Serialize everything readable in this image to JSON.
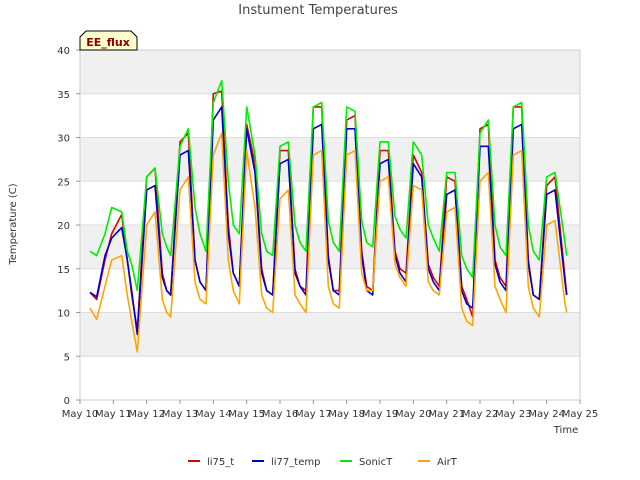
{
  "chart_data": {
    "type": "line",
    "title": "Instument Temperatures",
    "xlabel": "Time",
    "ylabel": "Temperature (C)",
    "badge": "EE_flux",
    "ylim": [
      0,
      40
    ],
    "yticks": [
      0,
      5,
      10,
      15,
      20,
      25,
      30,
      35,
      40
    ],
    "xlim": [
      10,
      25
    ],
    "xticks": [
      {
        "value": 10,
        "label": "May 10"
      },
      {
        "value": 11,
        "label": "May 11"
      },
      {
        "value": 12,
        "label": "May 12"
      },
      {
        "value": 13,
        "label": "May 13"
      },
      {
        "value": 14,
        "label": "May 14"
      },
      {
        "value": 15,
        "label": "May 15"
      },
      {
        "value": 16,
        "label": "May 16"
      },
      {
        "value": 17,
        "label": "May 17"
      },
      {
        "value": 18,
        "label": "May 18"
      },
      {
        "value": 19,
        "label": "May 19"
      },
      {
        "value": 20,
        "label": "May 20"
      },
      {
        "value": 21,
        "label": "May 21"
      },
      {
        "value": 22,
        "label": "May 22"
      },
      {
        "value": 23,
        "label": "May 23"
      },
      {
        "value": 24,
        "label": "May 24"
      },
      {
        "value": 25,
        "label": "May 25"
      }
    ],
    "grid": true,
    "legend_position": "bottom",
    "series": [
      {
        "name": "li75_t",
        "color": "#dd0000",
        "x": [
          10.3,
          10.5,
          10.75,
          10.95,
          11.25,
          11.42,
          11.55,
          11.72,
          12.0,
          12.25,
          12.47,
          12.6,
          12.72,
          13.0,
          13.25,
          13.45,
          13.6,
          13.78,
          14.0,
          14.25,
          14.45,
          14.6,
          14.78,
          15.0,
          15.25,
          15.45,
          15.6,
          15.78,
          16.0,
          16.25,
          16.45,
          16.6,
          16.78,
          17.0,
          17.25,
          17.45,
          17.6,
          17.78,
          18.0,
          18.25,
          18.45,
          18.6,
          18.78,
          19.0,
          19.25,
          19.45,
          19.6,
          19.78,
          20.0,
          20.25,
          20.45,
          20.6,
          20.78,
          21.0,
          21.25,
          21.45,
          21.6,
          21.78,
          22.0,
          22.25,
          22.45,
          22.6,
          22.78,
          23.0,
          23.25,
          23.45,
          23.6,
          23.78,
          24.0,
          24.25,
          24.55,
          24.6
        ],
        "y": [
          12.3,
          11.5,
          16.0,
          19.0,
          21.2,
          16.0,
          12.0,
          8.0,
          25.5,
          26.5,
          14.5,
          12.5,
          12.0,
          29.5,
          30.5,
          16.0,
          13.5,
          12.5,
          35.0,
          35.3,
          20.0,
          14.5,
          13.0,
          31.5,
          27.0,
          15.0,
          12.5,
          12.0,
          28.5,
          28.5,
          15.0,
          13.0,
          12.5,
          33.5,
          33.5,
          16.5,
          12.5,
          12.5,
          32.0,
          32.5,
          17.0,
          13.0,
          12.5,
          28.5,
          28.5,
          17.0,
          15.0,
          14.5,
          28.0,
          26.0,
          15.5,
          14.0,
          13.0,
          25.5,
          25.0,
          13.0,
          11.5,
          9.5,
          31.0,
          31.5,
          16.0,
          14.0,
          13.0,
          33.5,
          33.5,
          16.0,
          12.0,
          11.5,
          24.5,
          25.5,
          14.0,
          12.0
        ]
      },
      {
        "name": "li77_temp",
        "color": "#0000cc",
        "x": [
          10.3,
          10.5,
          10.75,
          10.95,
          11.25,
          11.42,
          11.55,
          11.72,
          12.0,
          12.25,
          12.47,
          12.6,
          12.72,
          13.0,
          13.25,
          13.45,
          13.6,
          13.78,
          14.0,
          14.25,
          14.45,
          14.6,
          14.78,
          15.0,
          15.25,
          15.45,
          15.6,
          15.78,
          16.0,
          16.25,
          16.45,
          16.6,
          16.78,
          17.0,
          17.25,
          17.45,
          17.6,
          17.78,
          18.0,
          18.25,
          18.45,
          18.6,
          18.78,
          19.0,
          19.25,
          19.45,
          19.6,
          19.78,
          20.0,
          20.25,
          20.45,
          20.6,
          20.78,
          21.0,
          21.25,
          21.45,
          21.6,
          21.78,
          22.0,
          22.25,
          22.45,
          22.6,
          22.78,
          23.0,
          23.25,
          23.45,
          23.6,
          23.78,
          24.0,
          24.25,
          24.55,
          24.6
        ],
        "y": [
          12.3,
          11.8,
          16.5,
          18.5,
          19.7,
          16.0,
          12.5,
          7.5,
          24.0,
          24.5,
          14.0,
          12.5,
          12.0,
          28.0,
          28.5,
          16.0,
          13.5,
          12.5,
          32.0,
          33.5,
          19.0,
          14.5,
          13.0,
          31.0,
          26.0,
          14.5,
          12.5,
          12.0,
          27.0,
          27.5,
          14.5,
          13.0,
          12.0,
          31.0,
          31.5,
          16.0,
          12.5,
          12.0,
          31.0,
          31.0,
          16.5,
          12.5,
          12.0,
          27.0,
          27.5,
          16.5,
          14.5,
          13.5,
          27.0,
          25.5,
          15.0,
          13.5,
          12.5,
          23.5,
          24.0,
          12.5,
          11.0,
          10.5,
          29.0,
          29.0,
          15.5,
          13.5,
          12.5,
          31.0,
          31.5,
          15.5,
          12.0,
          11.5,
          23.5,
          24.0,
          13.5,
          12.0
        ]
      },
      {
        "name": "SonicT",
        "color": "#00ee00",
        "x": [
          10.3,
          10.5,
          10.75,
          10.95,
          11.25,
          11.42,
          11.55,
          11.72,
          12.0,
          12.25,
          12.47,
          12.6,
          12.72,
          13.0,
          13.25,
          13.45,
          13.6,
          13.78,
          14.0,
          14.25,
          14.45,
          14.6,
          14.78,
          15.0,
          15.25,
          15.45,
          15.6,
          15.78,
          16.0,
          16.25,
          16.45,
          16.6,
          16.78,
          17.0,
          17.25,
          17.45,
          17.6,
          17.78,
          18.0,
          18.25,
          18.45,
          18.6,
          18.78,
          19.0,
          19.25,
          19.45,
          19.6,
          19.78,
          20.0,
          20.25,
          20.45,
          20.6,
          20.78,
          21.0,
          21.25,
          21.45,
          21.6,
          21.78,
          22.0,
          22.25,
          22.45,
          22.6,
          22.78,
          23.0,
          23.25,
          23.45,
          23.6,
          23.78,
          24.0,
          24.25,
          24.55,
          24.6
        ],
        "y": [
          17.0,
          16.5,
          19.0,
          22.0,
          21.5,
          17.0,
          15.5,
          12.5,
          25.5,
          26.5,
          19.0,
          17.5,
          16.5,
          29.0,
          31.0,
          22.0,
          19.0,
          17.0,
          34.0,
          36.5,
          25.0,
          20.0,
          19.0,
          33.5,
          28.0,
          19.0,
          17.0,
          16.5,
          29.0,
          29.5,
          20.0,
          18.0,
          17.0,
          33.5,
          34.0,
          20.5,
          18.0,
          17.0,
          33.5,
          33.0,
          20.5,
          18.0,
          17.5,
          29.5,
          29.5,
          21.0,
          19.5,
          18.5,
          29.5,
          28.0,
          20.0,
          18.5,
          17.0,
          26.0,
          26.0,
          16.5,
          15.0,
          14.0,
          30.5,
          32.0,
          20.0,
          17.5,
          16.5,
          33.5,
          34.0,
          20.0,
          17.0,
          16.0,
          25.5,
          26.0,
          18.0,
          16.5
        ]
      },
      {
        "name": "AirT",
        "color": "#ffa500",
        "x": [
          10.3,
          10.5,
          10.75,
          10.95,
          11.25,
          11.42,
          11.55,
          11.72,
          12.0,
          12.25,
          12.47,
          12.6,
          12.72,
          13.0,
          13.25,
          13.45,
          13.6,
          13.78,
          14.0,
          14.25,
          14.45,
          14.6,
          14.78,
          15.0,
          15.25,
          15.45,
          15.6,
          15.78,
          16.0,
          16.25,
          16.45,
          16.6,
          16.78,
          17.0,
          17.25,
          17.45,
          17.6,
          17.78,
          18.0,
          18.25,
          18.45,
          18.6,
          18.78,
          19.0,
          19.25,
          19.45,
          19.6,
          19.78,
          20.0,
          20.25,
          20.45,
          20.6,
          20.78,
          21.0,
          21.25,
          21.45,
          21.6,
          21.78,
          22.0,
          22.25,
          22.45,
          22.6,
          22.78,
          23.0,
          23.25,
          23.45,
          23.6,
          23.78,
          24.0,
          24.25,
          24.55,
          24.6
        ],
        "y": [
          10.5,
          9.2,
          13.0,
          16.0,
          16.5,
          12.0,
          9.0,
          5.5,
          20.0,
          21.5,
          11.5,
          10.0,
          9.5,
          24.0,
          25.5,
          13.5,
          11.5,
          11.0,
          28.0,
          30.5,
          16.0,
          12.5,
          11.0,
          28.5,
          22.0,
          12.0,
          10.5,
          10.0,
          23.0,
          24.0,
          12.0,
          11.0,
          10.0,
          28.0,
          28.5,
          13.0,
          11.0,
          10.5,
          28.0,
          28.5,
          14.5,
          12.5,
          12.5,
          25.0,
          25.5,
          15.5,
          14.0,
          13.0,
          24.5,
          24.0,
          13.5,
          12.5,
          12.0,
          21.5,
          22.0,
          10.5,
          9.0,
          8.5,
          25.0,
          26.0,
          13.0,
          11.5,
          10.0,
          28.0,
          28.5,
          13.0,
          10.5,
          9.5,
          20.0,
          20.5,
          11.0,
          10.0
        ]
      }
    ]
  }
}
